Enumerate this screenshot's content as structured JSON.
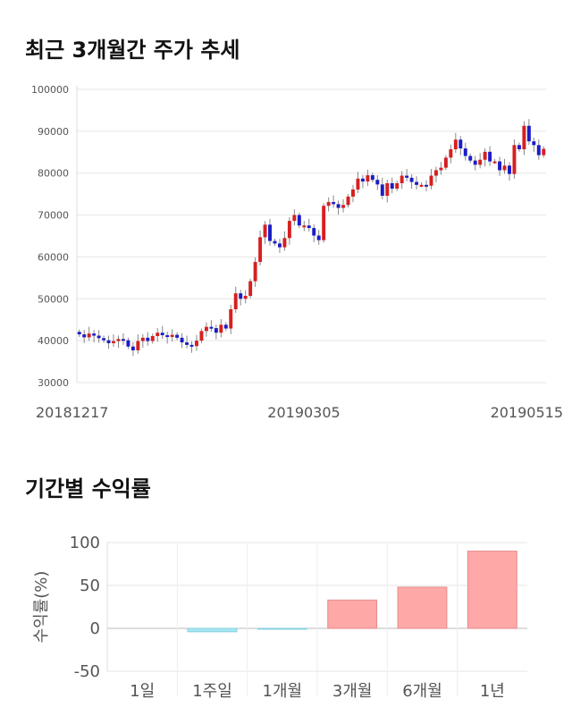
{
  "sections": {
    "price_title": "최근 3개월간 주가 추세",
    "returns_title": "기간별 수익률"
  },
  "chart_data": [
    {
      "type": "candlestick",
      "title": "최근 3개월간 주가 추세",
      "ylim": [
        30000,
        100000
      ],
      "y_ticks": [
        100000,
        90000,
        80000,
        70000,
        60000,
        50000,
        40000,
        30000
      ],
      "x_tick_labels": [
        "20181217",
        "20190305",
        "20190515"
      ],
      "grid": true,
      "up_color": "#d62020",
      "down_color": "#1c1cc8",
      "closes": [
        41500,
        40800,
        41700,
        41200,
        40600,
        40100,
        39400,
        39900,
        40400,
        40100,
        38600,
        37700,
        39900,
        40700,
        39900,
        41100,
        41900,
        41300,
        40900,
        41400,
        40700,
        39600,
        39000,
        38700,
        40000,
        42300,
        43300,
        43000,
        41900,
        43800,
        42900,
        47500,
        51300,
        50000,
        50700,
        54200,
        58800,
        64700,
        67700,
        63800,
        63200,
        62300,
        64500,
        68600,
        70000,
        67500,
        67500,
        66900,
        65100,
        64000,
        72200,
        73100,
        72600,
        71700,
        72400,
        74400,
        76100,
        78700,
        78000,
        79500,
        78400,
        77300,
        74600,
        77600,
        76300,
        77600,
        79400,
        78900,
        77900,
        77200,
        77200,
        77000,
        79400,
        80700,
        81300,
        83700,
        85700,
        88000,
        85900,
        84100,
        83000,
        82000,
        83200,
        85100,
        82800,
        82800,
        80700,
        81800,
        79800,
        86700,
        85700,
        91300,
        87600,
        86700,
        84300,
        85800
      ],
      "open_first": 42100
    },
    {
      "type": "bar",
      "title": "기간별 수익률",
      "ylabel": "수익률(%)",
      "categories": [
        "1일",
        "1주일",
        "1개월",
        "3개월",
        "6개월",
        "1년"
      ],
      "values": [
        0,
        -4,
        -1,
        33,
        48,
        90
      ],
      "ylim": [
        -50,
        100
      ],
      "y_ticks": [
        100,
        50,
        0,
        -50
      ],
      "colors": {
        "positive": "#ffa8a8",
        "negative": "#a8e6f2"
      }
    }
  ]
}
